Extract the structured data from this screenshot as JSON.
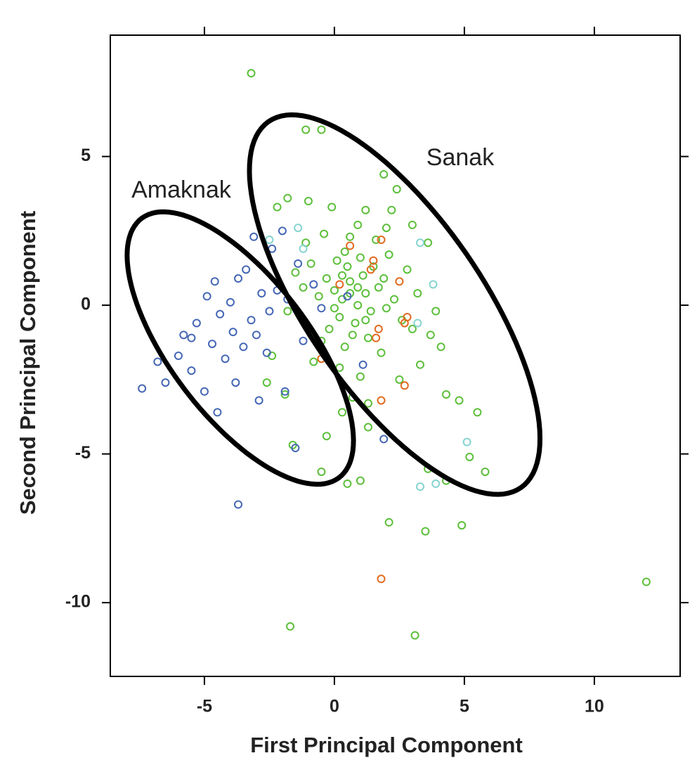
{
  "chart_data": {
    "type": "scatter",
    "x_label": "First Principal Component",
    "y_label": "Second Principal Component",
    "xlim": [
      -8.62,
      13.3
    ],
    "ylim": [
      -12.48,
      9.08
    ],
    "xticks": [
      -5,
      0,
      5,
      10
    ],
    "yticks": [
      5,
      0,
      -5,
      -10
    ],
    "grid": false,
    "series": [
      {
        "color": "#5cbf3a",
        "x": [
          -3.2,
          -1.1,
          -0.5,
          1.9,
          2.4,
          -1.8,
          -1.0,
          -0.1,
          1.2,
          2.2,
          3.0,
          3.6,
          -2.2,
          4.1,
          4.3,
          4.8,
          5.5,
          5.2,
          5.8,
          3.6,
          4.3,
          1.0,
          0.5,
          -0.5,
          -1.6,
          -0.3,
          2.1,
          3.5,
          4.9,
          -1.7,
          3.1,
          12.0,
          -1.9,
          1.3,
          1.3,
          0.3,
          0.7,
          -2.6,
          -2.4,
          3.3,
          3.7,
          3.9,
          0.0,
          0.3,
          0.6,
          0.9,
          1.2,
          -0.3,
          -0.6,
          0.2,
          0.5,
          0.8,
          1.1,
          1.4,
          1.7,
          2.0,
          -0.9,
          -1.2,
          -0.2,
          0.4,
          0.7,
          1.0,
          1.5,
          1.9,
          2.3,
          2.6,
          -0.5,
          0.1,
          0.4,
          1.3,
          1.8,
          2.1,
          -1.5,
          -1.8,
          0.6,
          1.6,
          2.8,
          3.0,
          -0.8,
          0.2,
          1.0,
          2.5,
          -1.1,
          0.9,
          2.0,
          3.2,
          -0.4,
          1.2,
          0.6,
          0.0,
          0.3,
          0.9
        ],
        "values": [
          7.8,
          5.9,
          5.9,
          4.4,
          3.9,
          3.6,
          3.5,
          3.3,
          3.2,
          3.2,
          2.7,
          2.1,
          3.3,
          -1.4,
          -3.0,
          -3.2,
          -3.6,
          -5.1,
          -5.6,
          -5.5,
          -5.9,
          -5.9,
          -6.0,
          -5.6,
          -4.7,
          -4.4,
          -7.3,
          -7.6,
          -7.4,
          -10.8,
          -11.1,
          -9.3,
          -3.0,
          -3.3,
          -4.1,
          -3.6,
          -3.1,
          -2.6,
          -1.7,
          -2.0,
          -1.0,
          -0.2,
          0.5,
          0.2,
          0.8,
          0.0,
          0.4,
          0.9,
          0.3,
          -0.4,
          1.3,
          -0.6,
          1.0,
          -0.2,
          0.6,
          -0.1,
          1.4,
          0.6,
          -0.8,
          1.8,
          -1.0,
          1.6,
          1.3,
          0.9,
          0.2,
          -0.5,
          -1.2,
          1.5,
          -1.4,
          -1.1,
          -1.6,
          1.7,
          1.1,
          -0.2,
          2.3,
          2.2,
          1.2,
          -0.8,
          -1.9,
          -2.1,
          -2.4,
          -2.5,
          2.1,
          2.7,
          2.6,
          0.4,
          2.4,
          -0.5,
          0.4,
          -0.1,
          1.0,
          0.6
        ]
      },
      {
        "color": "#4566b5",
        "x": [
          -7.4,
          -6.8,
          -6.5,
          -6.0,
          -5.8,
          -5.5,
          -5.3,
          -5.0,
          -4.9,
          -4.7,
          -4.6,
          -4.5,
          -4.4,
          -4.2,
          -4.0,
          -3.9,
          -3.8,
          -3.7,
          -3.7,
          -3.5,
          -3.4,
          -3.2,
          -3.1,
          -3.0,
          -2.9,
          -2.8,
          -2.6,
          -2.5,
          -2.4,
          -2.2,
          -2.0,
          -1.9,
          -1.8,
          -1.5,
          -1.4,
          -1.2,
          -0.8,
          -0.5,
          0.5,
          1.1,
          1.9,
          -5.5
        ],
        "values": [
          -2.8,
          -1.9,
          -2.6,
          -1.7,
          -1.0,
          -2.2,
          -0.6,
          -2.9,
          0.3,
          -1.3,
          0.8,
          -3.6,
          -0.3,
          -1.8,
          0.1,
          -0.9,
          -2.6,
          0.9,
          -6.7,
          -1.4,
          1.2,
          -0.5,
          2.3,
          -1.0,
          -3.2,
          0.4,
          -1.6,
          -0.2,
          1.9,
          0.5,
          2.5,
          -2.9,
          0.2,
          -4.8,
          1.4,
          -1.2,
          0.7,
          -0.1,
          0.3,
          -2.0,
          -4.5,
          -1.1
        ]
      },
      {
        "color": "#e2691f",
        "x": [
          0.6,
          1.8,
          1.5,
          1.4,
          2.5,
          2.8,
          2.7,
          1.7,
          1.6,
          -0.5,
          2.7,
          1.8,
          1.8,
          0.2
        ],
        "values": [
          2.0,
          2.2,
          1.5,
          1.2,
          0.8,
          -0.4,
          -0.6,
          -0.8,
          -1.1,
          -1.8,
          -2.7,
          -3.2,
          -9.2,
          0.7
        ]
      },
      {
        "color": "#86d4d0",
        "x": [
          -1.4,
          3.3,
          3.8,
          3.2,
          5.1,
          3.9,
          3.3,
          -2.5,
          -1.2
        ],
        "values": [
          2.6,
          2.1,
          0.7,
          -0.6,
          -4.6,
          -6.0,
          -6.1,
          2.2,
          1.9
        ]
      }
    ],
    "ellipses": [
      {
        "label": "Amaknak",
        "center": [
          -3.62,
          -1.44
        ],
        "axes": [
          [
            3.78,
            -4.37
          ],
          [
            2.16,
            1.37
          ]
        ]
      },
      {
        "label": "Sanak",
        "center": [
          2.32,
          0.02
        ],
        "axes": [
          [
            4.86,
            -6.15
          ],
          [
            2.76,
            1.7
          ]
        ]
      }
    ]
  }
}
